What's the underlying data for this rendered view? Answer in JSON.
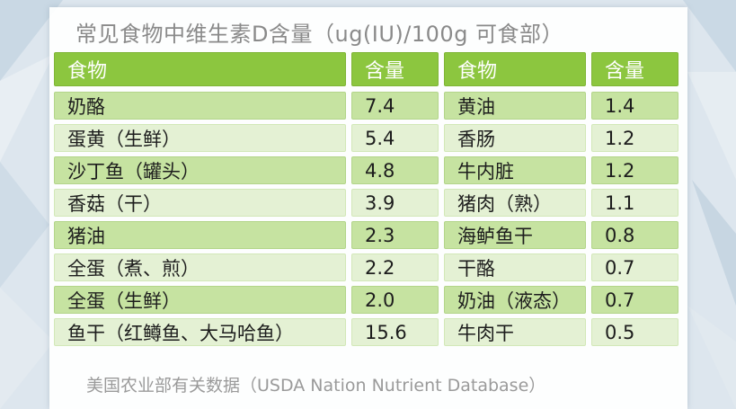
{
  "title": "常见食物中维生素D含量（ug(IU)/100g 可食部）",
  "header": {
    "col1": "食物",
    "col2": "含量",
    "col3": "食物",
    "col4": "含量"
  },
  "rows": [
    {
      "food_a": "奶酪",
      "value_a": "7.4",
      "food_b": "黄油",
      "value_b": "1.4"
    },
    {
      "food_a": "蛋黄（生鲜）",
      "value_a": "5.4",
      "food_b": "香肠",
      "value_b": "1.2"
    },
    {
      "food_a": "沙丁鱼（罐头）",
      "value_a": "4.8",
      "food_b": "牛内脏",
      "value_b": "1.2"
    },
    {
      "food_a": "香菇（干）",
      "value_a": "3.9",
      "food_b": "猪肉（熟）",
      "value_b": "1.1"
    },
    {
      "food_a": "猪油",
      "value_a": "2.3",
      "food_b": "海鲈鱼干",
      "value_b": "0.8"
    },
    {
      "food_a": "全蛋（煮、煎）",
      "value_a": "2.2",
      "food_b": "干酪",
      "value_b": "0.7"
    },
    {
      "food_a": "全蛋（生鲜）",
      "value_a": "2.0",
      "food_b": "奶油（液态）",
      "value_b": "0.7"
    },
    {
      "food_a": "鱼干（红鳟鱼、大马哈鱼）",
      "value_a": "15.6",
      "food_b": "牛肉干",
      "value_b": "0.5"
    }
  ],
  "footer": "美国农业部有关数据（USDA Nation Nutrient Database）",
  "colors": {
    "header_green": "#8cc63f",
    "row_dark": "#c6e3a1",
    "row_light": "#e4f1d4",
    "title_gray": "#8a8a8a"
  }
}
